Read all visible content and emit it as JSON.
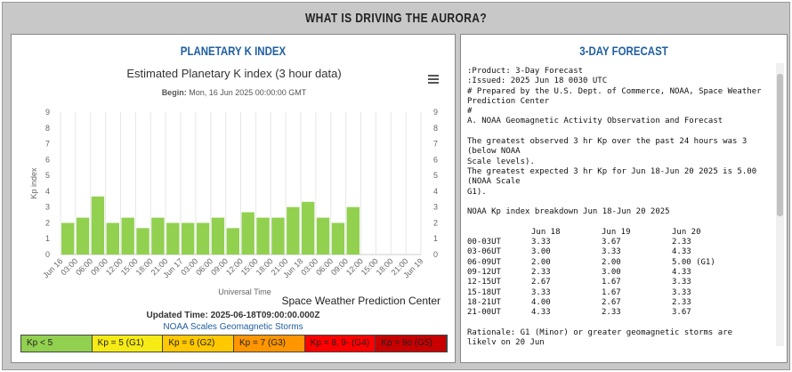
{
  "header": {
    "title": "WHAT IS DRIVING THE AURORA?"
  },
  "left_panel": {
    "title": "PLANETARY K INDEX",
    "updated": "Updated Time: 2025-06-18T09:00:00.000Z",
    "link": "NOAA Scales Geomagnetic Storms",
    "scale": [
      {
        "label": "Kp < 5",
        "color": "#92d050"
      },
      {
        "label": "Kp = 5 (G1)",
        "color": "#f6eb14"
      },
      {
        "label": "Kp = 6 (G2)",
        "color": "#ffc800"
      },
      {
        "label": "Kp = 7 (G3)",
        "color": "#ff9600"
      },
      {
        "label": "Kp = 8, 9- (G4)",
        "color": "#ff0000"
      },
      {
        "label": "Kp = 9o (G5)",
        "color": "#c80000"
      }
    ]
  },
  "chart_data": {
    "type": "bar",
    "title": "Estimated Planetary K index (3 hour data)",
    "subtitle_label": "Begin:",
    "subtitle": "Mon, 16 Jun 2025 00:00:00 GMT",
    "y_label": "Kp index",
    "x_label": "Universal Time",
    "credit": "Space Weather Prediction Center",
    "color": "#92d050",
    "categories": [
      "Jun 16",
      "03:00",
      "06:00",
      "09:00",
      "12:00",
      "15:00",
      "18:00",
      "21:00",
      "Jun 17",
      "03:00",
      "06:00",
      "09:00",
      "12:00",
      "15:00",
      "18:00",
      "21:00",
      "Jun 18",
      "03:00",
      "06:00",
      "09:00",
      "12:00",
      "15:00",
      "18:00",
      "21:00",
      "Jun 19"
    ],
    "values": [
      2.0,
      2.33,
      3.67,
      2.0,
      2.33,
      1.67,
      2.33,
      2.0,
      2.0,
      2.0,
      2.33,
      1.67,
      2.67,
      2.33,
      2.33,
      3.0,
      3.33,
      2.33,
      2.0,
      3.0,
      null,
      null,
      null,
      null,
      null
    ],
    "ylim": [
      0,
      9
    ],
    "yticks": [
      0,
      1,
      2,
      3,
      4,
      5,
      6,
      7,
      8,
      9
    ],
    "grid": true
  },
  "forecast": {
    "title": "3-DAY FORECAST",
    "paragraphs": [
      [
        ":Product: 3-Day Forecast",
        ":Issued: 2025 Jun 18 0030 UTC",
        "# Prepared by the U.S. Dept. of Commerce, NOAA, Space Weather",
        "Prediction Center",
        "#",
        "A. NOAA Geomagnetic Activity Observation and Forecast"
      ],
      [
        "The greatest observed 3 hr Kp over the past 24 hours was 3",
        "(below NOAA",
        "Scale levels).",
        "The greatest expected 3 hr Kp for Jun 18-Jun 20 2025 is 5.00",
        "(NOAA Scale",
        "G1)."
      ],
      [
        "NOAA Kp index breakdown Jun 18-Jun 20 2025"
      ]
    ],
    "table": {
      "header": [
        "Jun 18",
        "Jun 19",
        "Jun 20"
      ],
      "rows": [
        [
          "00-03UT",
          "3.33",
          "3.67",
          "2.33"
        ],
        [
          "03-06UT",
          "3.00",
          "3.33",
          "4.33"
        ],
        [
          "06-09UT",
          "2.00",
          "2.00",
          "5.00 (G1)"
        ],
        [
          "09-12UT",
          "2.33",
          "3.00",
          "4.33"
        ],
        [
          "12-15UT",
          "2.67",
          "1.67",
          "3.33"
        ],
        [
          "15-18UT",
          "3.33",
          "1.67",
          "3.33"
        ],
        [
          "18-21UT",
          "4.00",
          "2.67",
          "2.33"
        ],
        [
          "21-00UT",
          "4.33",
          "2.33",
          "3.67"
        ]
      ]
    },
    "rationale": [
      "Rationale: G1 (Minor) or greater geomagnetic storms are",
      "likely on 20 Jun"
    ]
  }
}
